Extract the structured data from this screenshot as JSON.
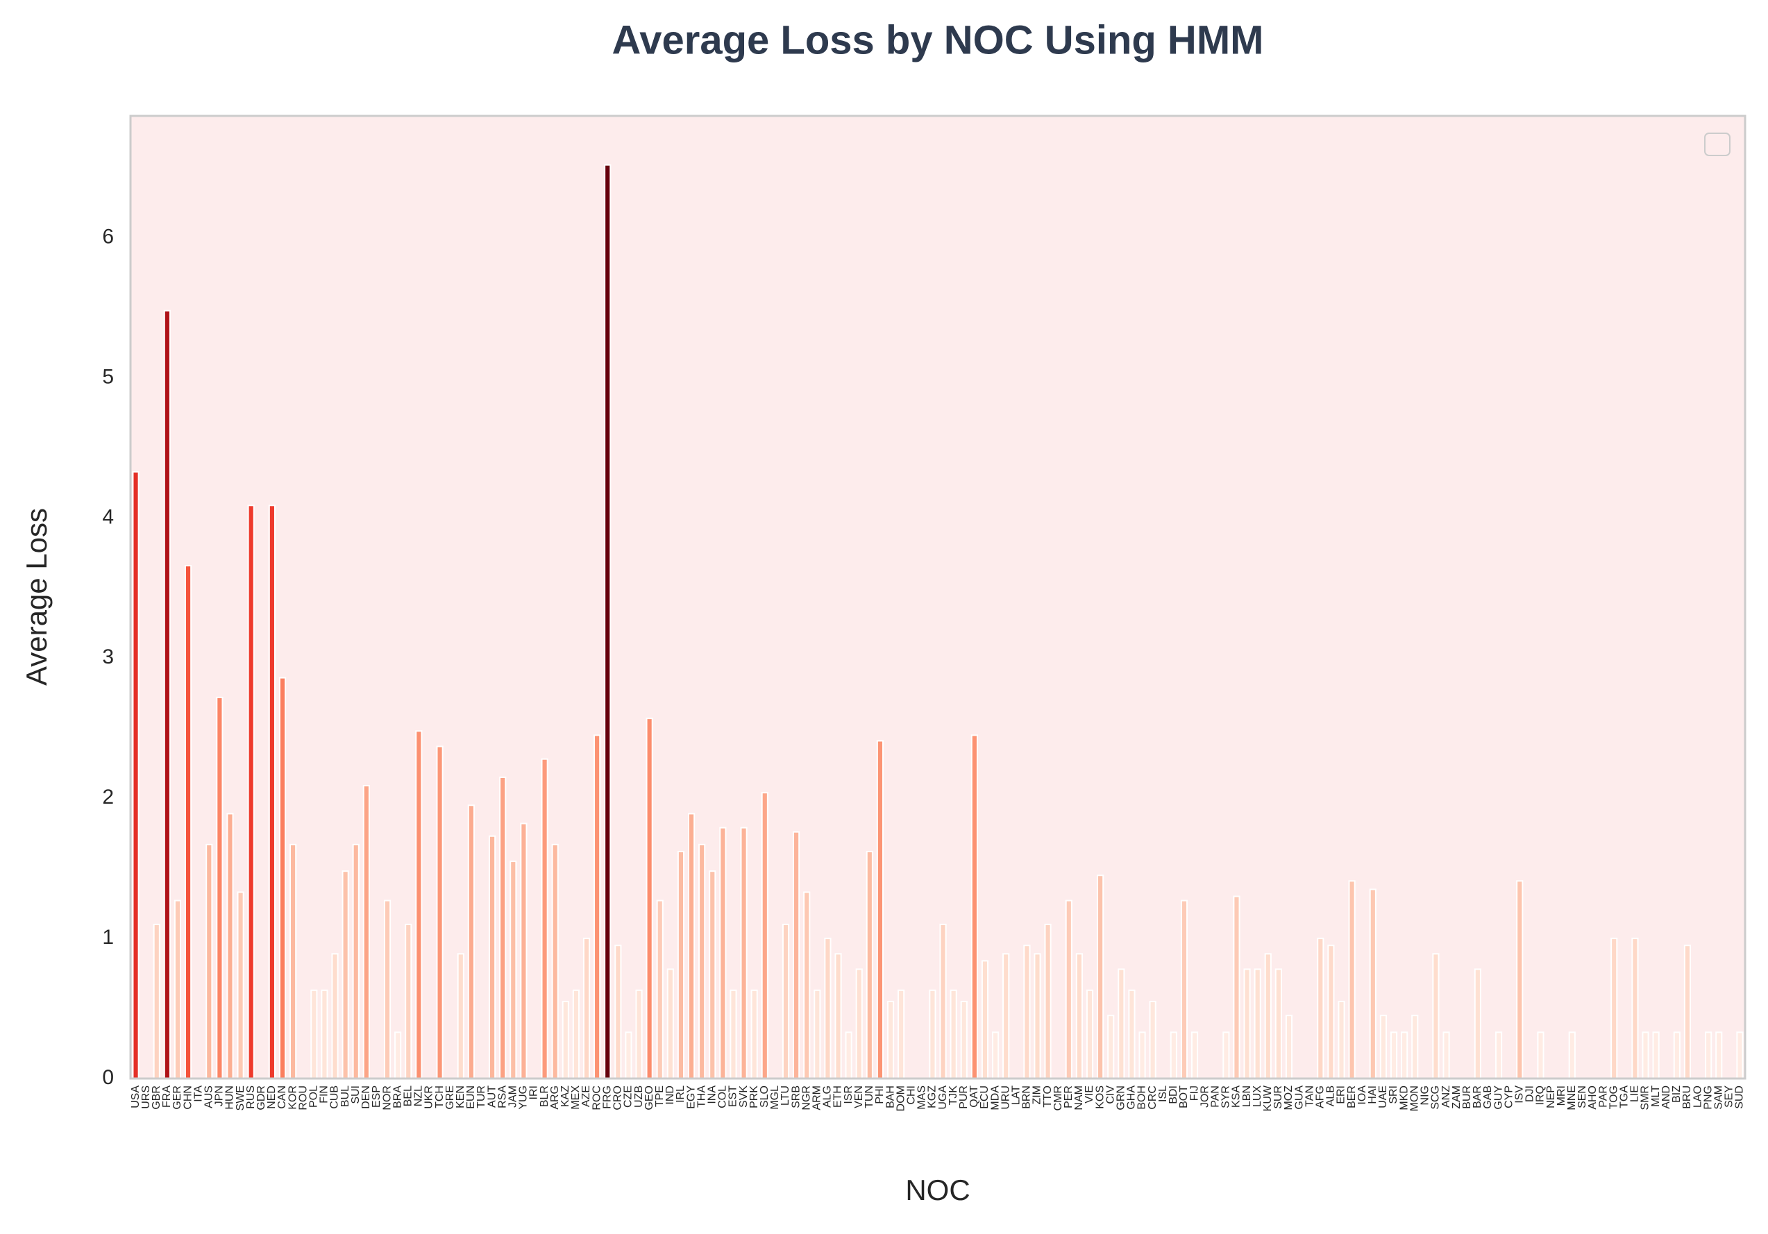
{
  "chart_data": {
    "type": "bar",
    "title": "Average Loss by NOC Using HMM",
    "x_label": "NOC",
    "y_label": "Average Loss",
    "categories": [
      "USA",
      "URS",
      "GBR",
      "FRA",
      "GER",
      "CHN",
      "ITA",
      "AUS",
      "JPN",
      "HUN",
      "SWE",
      "RUS",
      "GDR",
      "NED",
      "CAN",
      "KOR",
      "ROU",
      "POL",
      "FIN",
      "CUB",
      "BUL",
      "SUI",
      "DEN",
      "ESP",
      "NOR",
      "BRA",
      "BEL",
      "NZL",
      "UKR",
      "TCH",
      "GRE",
      "KEN",
      "EUN",
      "TUR",
      "AUT",
      "RSA",
      "JAM",
      "YUG",
      "IRI",
      "BLR",
      "ARG",
      "KAZ",
      "MEX",
      "AZE",
      "ROC",
      "FRG",
      "CRO",
      "CZE",
      "UZB",
      "GEO",
      "TPE",
      "IND",
      "IRL",
      "EGY",
      "THA",
      "INA",
      "COL",
      "EST",
      "SVK",
      "PRK",
      "SLO",
      "MGL",
      "LTU",
      "SRB",
      "NGR",
      "ARM",
      "ALG",
      "ETH",
      "ISR",
      "VEN",
      "TUN",
      "PHI",
      "BAH",
      "DOM",
      "CHI",
      "MAS",
      "KGZ",
      "UGA",
      "TJK",
      "PUR",
      "QAT",
      "ECU",
      "MDA",
      "URU",
      "LAT",
      "BRN",
      "ZIM",
      "TTO",
      "CMR",
      "PER",
      "NAM",
      "VIE",
      "KOS",
      "CIV",
      "GRN",
      "GHA",
      "BOH",
      "CRC",
      "ISL",
      "BDI",
      "BOT",
      "FIJ",
      "JOR",
      "PAN",
      "SYR",
      "KSA",
      "LBN",
      "LUX",
      "KUW",
      "SUR",
      "MOZ",
      "GUA",
      "TAN",
      "AFG",
      "ALB",
      "ERI",
      "BER",
      "IOA",
      "HAI",
      "UAE",
      "SRI",
      "MKD",
      "MON",
      "NIG",
      "SCG",
      "ANZ",
      "ZAM",
      "BUR",
      "BAR",
      "GAB",
      "GUY",
      "CYP",
      "ISV",
      "DJI",
      "IRQ",
      "NEP",
      "MRI",
      "MNE",
      "SEN",
      "AHO",
      "PAR",
      "TOG",
      "TGA",
      "LIE",
      "SMR",
      "MLT",
      "AND",
      "BIZ",
      "BRU",
      "LAO",
      "PNG",
      "SAM",
      "SEY",
      "SUD"
    ],
    "values": [
      4.33,
      0,
      1.1,
      5.48,
      1.27,
      3.66,
      0,
      1.67,
      2.72,
      1.89,
      1.33,
      4.09,
      0,
      4.09,
      2.86,
      1.67,
      0,
      0.63,
      0.63,
      0.89,
      1.48,
      1.67,
      2.09,
      0,
      1.27,
      0.33,
      1.1,
      2.48,
      0,
      2.37,
      0,
      0.89,
      1.95,
      0,
      1.73,
      2.15,
      1.55,
      1.82,
      0,
      2.28,
      1.67,
      0.55,
      0.63,
      1.0,
      2.45,
      6.52,
      0.95,
      0.33,
      0.63,
      2.57,
      1.27,
      0.78,
      1.62,
      1.89,
      1.67,
      1.48,
      1.79,
      0.63,
      1.79,
      0.63,
      2.04,
      0,
      1.1,
      1.76,
      1.33,
      0.63,
      1.0,
      0.89,
      0.33,
      0.78,
      1.62,
      2.41,
      0.55,
      0.63,
      0,
      0,
      0.63,
      1.1,
      0.63,
      0.55,
      2.45,
      0.84,
      0.33,
      0.89,
      0,
      0.95,
      0.89,
      1.1,
      0,
      1.27,
      0.89,
      0.63,
      1.45,
      0.45,
      0.78,
      0.63,
      0.33,
      0.55,
      0,
      0.33,
      1.27,
      0.33,
      0,
      0,
      0.33,
      1.3,
      0.78,
      0.78,
      0.89,
      0.78,
      0.45,
      0,
      0,
      1.0,
      0.95,
      0.55,
      1.41,
      0,
      1.35,
      0.45,
      0.33,
      0.33,
      0.45,
      0,
      0.89,
      0.33,
      0,
      0,
      0.78,
      0,
      0.33,
      0,
      1.41,
      0,
      0.33,
      0,
      0,
      0.33,
      0,
      0,
      0,
      1.0,
      0,
      1.0,
      0.33,
      0.33,
      0,
      0.33,
      0.95,
      0,
      0.33,
      0.33,
      0,
      0.33
    ],
    "colormap": [
      "#fff5f0",
      "#fee0d2",
      "#fcbba1",
      "#fc9272",
      "#fb6a4a",
      "#ef3b2c",
      "#cb181d",
      "#a50f15",
      "#67000d"
    ],
    "ylim": [
      0,
      6.87
    ],
    "yticks": [
      0,
      1,
      2,
      3,
      4,
      5,
      6
    ],
    "grid": false
  }
}
